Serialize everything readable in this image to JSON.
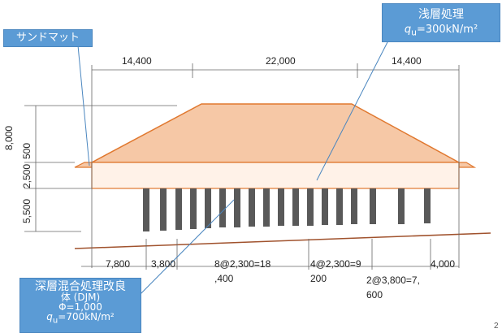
{
  "callouts": {
    "sand_mat": "サンドマット",
    "shallow_title": "浅層処理",
    "shallow_qu_symbol": "q",
    "shallow_qu_sub": "u",
    "shallow_qu_value": "=300kN/m²",
    "deep_line1": "深層混合処理改良",
    "deep_line2": "体 (DJM)",
    "deep_line3": "Φ=1,000",
    "deep_qu_symbol": "q",
    "deep_qu_sub": "u",
    "deep_qu_value": "=700kN/m²"
  },
  "top_dims": [
    "14,400",
    "22,000",
    "14,400"
  ],
  "left_dims": [
    "8,000",
    "500",
    "2,500",
    "5,500"
  ],
  "bottom_dims": {
    "d1": "7,800",
    "d2": "3,800",
    "d3_line1": "8@2,300=18",
    "d3_line2": ",400",
    "d4_line1": "4@2,300=9",
    "d4_line2": "200",
    "d5_line1": "2@3,800=7,",
    "d5_line2": "600",
    "d6": "4,000"
  },
  "page_number": "2",
  "colors": {
    "embankment_fill": "#f6c8a6",
    "embankment_stroke": "#e0782f",
    "sandmat_fill": "#fff2e8",
    "ground_line": "#a0522d",
    "pile": "#595959",
    "callout": "#5b9bd5",
    "leader": "#4a86bf"
  }
}
